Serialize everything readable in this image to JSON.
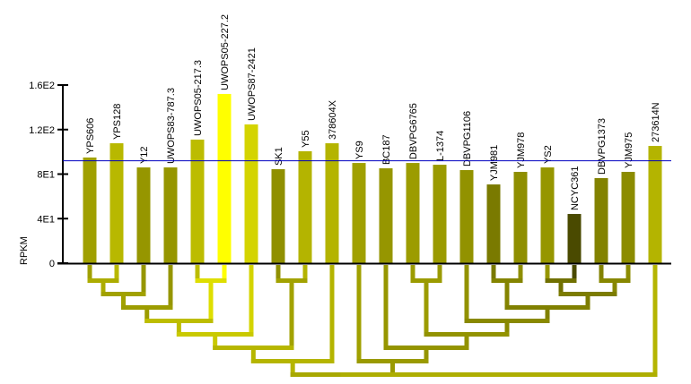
{
  "chart_data": {
    "type": "bar",
    "ylabel": "RPKM",
    "ylim": [
      0,
      160
    ],
    "yticks": [
      "0",
      "4E1",
      "8E1",
      "1.2E2",
      "1.6E2"
    ],
    "ytick_values": [
      0,
      40,
      80,
      120,
      160
    ],
    "grid": false,
    "reference_line": {
      "value": 92.4,
      "color": "#0000c0"
    },
    "categories": [
      "YPS606",
      "YPS128",
      "Y12",
      "UWOPS83-787.3",
      "UWOPS05-217.3",
      "UWOPS05-227.2",
      "UWOPS87-2421",
      "SK1",
      "Y55",
      "378604X",
      "YS9",
      "BC187",
      "DBVPG6765",
      "L-1374",
      "DBVPG1106",
      "YJM981",
      "YJM978",
      "YS2",
      "NCYC361",
      "DBVPG1373",
      "YJM975",
      "273614N"
    ],
    "values": [
      94.9,
      107.7,
      86,
      86,
      111,
      152,
      124.6,
      84.4,
      100.5,
      107.7,
      90,
      85.2,
      90,
      88.4,
      83.6,
      70.7,
      82,
      86,
      44.2,
      76.4,
      82,
      105.3
    ],
    "colors": [
      "#a0a000",
      "#b8b800",
      "#969600",
      "#969600",
      "#bcbc00",
      "#ffff00",
      "#d4d400",
      "#909000",
      "#b4b400",
      "#b4b400",
      "#a0a000",
      "#969600",
      "#9c9c00",
      "#9a9a00",
      "#929200",
      "#7a7a00",
      "#8e8e00",
      "#969600",
      "#4a4a00",
      "#828200",
      "#8c8c00",
      "#b4b400"
    ],
    "dendrogram": {
      "merges": [
        {
          "id": 22,
          "children": [
            0,
            1
          ],
          "level": 1
        },
        {
          "id": 23,
          "children": [
            22,
            2
          ],
          "level": 2
        },
        {
          "id": 24,
          "children": [
            23,
            3
          ],
          "level": 3
        },
        {
          "id": 25,
          "children": [
            4,
            5
          ],
          "level": 1
        },
        {
          "id": 26,
          "children": [
            24,
            25
          ],
          "level": 4
        },
        {
          "id": 27,
          "children": [
            26,
            6
          ],
          "level": 5
        },
        {
          "id": 28,
          "children": [
            7,
            8
          ],
          "level": 1
        },
        {
          "id": 29,
          "children": [
            27,
            28
          ],
          "level": 6
        },
        {
          "id": 30,
          "children": [
            29,
            9
          ],
          "level": 7
        },
        {
          "id": 31,
          "children": [
            12,
            13
          ],
          "level": 1
        },
        {
          "id": 32,
          "children": [
            15,
            16
          ],
          "level": 1
        },
        {
          "id": 33,
          "children": [
            17,
            18
          ],
          "level": 1
        },
        {
          "id": 34,
          "children": [
            19,
            20
          ],
          "level": 1
        },
        {
          "id": 35,
          "children": [
            33,
            34
          ],
          "level": 2
        },
        {
          "id": 36,
          "children": [
            32,
            35
          ],
          "level": 3
        },
        {
          "id": 37,
          "children": [
            14,
            36
          ],
          "level": 4
        },
        {
          "id": 38,
          "children": [
            31,
            37
          ],
          "level": 5
        },
        {
          "id": 39,
          "children": [
            11,
            38
          ],
          "level": 6
        },
        {
          "id": 40,
          "children": [
            10,
            39
          ],
          "level": 7
        },
        {
          "id": 41,
          "children": [
            30,
            40
          ],
          "level": 8
        },
        {
          "id": 42,
          "children": [
            41,
            21
          ],
          "level": 8
        }
      ]
    }
  }
}
